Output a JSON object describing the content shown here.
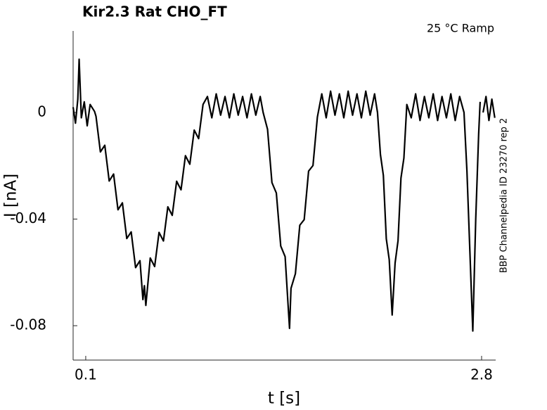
{
  "chart_data": {
    "type": "line",
    "title": "Kir2.3  Rat  CHO_FT",
    "annotation": "25 °C  Ramp",
    "side_label": "BBP Channelpedia ID 23270 rep 2",
    "x_label": "t [s]",
    "y_label": "I [nA]",
    "xlim": [
      0.014,
      2.896
    ],
    "ylim": [
      -0.0929,
      0.0306
    ],
    "xticks": [
      0.1,
      2.8
    ],
    "yticks": [
      0,
      -0.04,
      -0.08
    ],
    "color": "#000000",
    "x": [
      0.014,
      0.03,
      0.046,
      0.055,
      0.07,
      0.09,
      0.11,
      0.13,
      0.16,
      0.17,
      0.2,
      0.23,
      0.26,
      0.29,
      0.32,
      0.35,
      0.38,
      0.41,
      0.44,
      0.47,
      0.49,
      0.5,
      0.51,
      0.54,
      0.57,
      0.6,
      0.63,
      0.66,
      0.69,
      0.72,
      0.75,
      0.78,
      0.81,
      0.84,
      0.87,
      0.9,
      0.93,
      0.96,
      0.99,
      1.02,
      1.05,
      1.08,
      1.11,
      1.14,
      1.17,
      1.2,
      1.23,
      1.26,
      1.29,
      1.31,
      1.34,
      1.37,
      1.4,
      1.43,
      1.46,
      1.48,
      1.49,
      1.5,
      1.53,
      1.56,
      1.59,
      1.62,
      1.65,
      1.68,
      1.71,
      1.74,
      1.77,
      1.8,
      1.83,
      1.86,
      1.89,
      1.92,
      1.95,
      1.98,
      2.01,
      2.04,
      2.07,
      2.09,
      2.11,
      2.13,
      2.15,
      2.17,
      2.19,
      2.21,
      2.23,
      2.25,
      2.27,
      2.29,
      2.32,
      2.35,
      2.38,
      2.41,
      2.44,
      2.47,
      2.5,
      2.53,
      2.56,
      2.59,
      2.62,
      2.65,
      2.68,
      2.7,
      2.72,
      2.74,
      2.76,
      2.78,
      2.79,
      2.8,
      2.81,
      2.83,
      2.85,
      2.87,
      2.89
    ],
    "values": [
      0.002,
      -0.004,
      0.005,
      0.02,
      -0.002,
      0.004,
      -0.005,
      0.003,
      0.0004,
      -0.0014,
      -0.0148,
      -0.0123,
      -0.0257,
      -0.0231,
      -0.0365,
      -0.0339,
      -0.0473,
      -0.0448,
      -0.0582,
      -0.0556,
      -0.0702,
      -0.065,
      -0.0724,
      -0.0546,
      -0.0578,
      -0.045,
      -0.0482,
      -0.0354,
      -0.0386,
      -0.0258,
      -0.029,
      -0.0162,
      -0.0194,
      -0.0066,
      -0.0098,
      0.003,
      0.006,
      -0.002,
      0.007,
      -0.001,
      0.006,
      -0.002,
      0.007,
      -0.001,
      0.006,
      -0.002,
      0.007,
      -0.001,
      0.006,
      0.0,
      -0.0063,
      -0.0263,
      -0.0302,
      -0.0501,
      -0.0541,
      -0.0721,
      -0.081,
      -0.066,
      -0.0605,
      -0.0423,
      -0.0402,
      -0.022,
      -0.0199,
      -0.0017,
      0.007,
      -0.002,
      0.008,
      -0.001,
      0.007,
      -0.002,
      0.008,
      -0.001,
      0.007,
      -0.002,
      0.008,
      -0.001,
      0.007,
      0.0,
      -0.0158,
      -0.0236,
      -0.0474,
      -0.0552,
      -0.076,
      -0.0565,
      -0.0481,
      -0.0246,
      -0.0171,
      0.003,
      -0.002,
      0.007,
      -0.003,
      0.006,
      -0.002,
      0.007,
      -0.003,
      0.006,
      -0.002,
      0.007,
      -0.003,
      0.006,
      0.0,
      -0.022,
      -0.052,
      -0.082,
      -0.04,
      -0.008,
      0.004,
      null,
      0.0,
      0.006,
      -0.003,
      0.005,
      -0.002
    ]
  }
}
